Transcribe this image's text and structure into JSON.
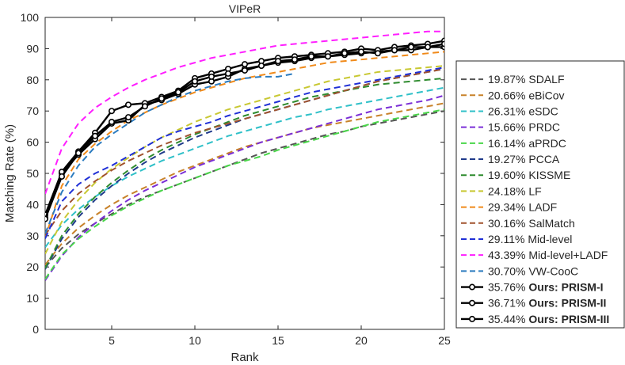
{
  "chart_data": {
    "type": "line",
    "title": "VIPeR",
    "xlabel": "Rank",
    "ylabel": "Matching Rate (%)",
    "xlim": [
      1,
      25
    ],
    "ylim": [
      0,
      100
    ],
    "xticks": [
      5,
      10,
      15,
      20,
      25
    ],
    "yticks": [
      0,
      10,
      20,
      30,
      40,
      50,
      60,
      70,
      80,
      90,
      100
    ],
    "grid": false,
    "legend_position": "right-outside",
    "x": [
      1,
      2,
      3,
      4,
      5,
      6,
      7,
      8,
      9,
      10,
      11,
      12,
      13,
      14,
      15,
      16,
      17,
      18,
      19,
      20,
      21,
      22,
      23,
      24,
      25
    ],
    "series": [
      {
        "name": "SDALF",
        "legend_value": "19.87%",
        "legend_name": "SDALF",
        "bold": false,
        "color": "#555555",
        "style": "dashed",
        "values": [
          19.9,
          26.0,
          30.5,
          34.0,
          37.0,
          40.0,
          42.5,
          44.5,
          46.5,
          48.5,
          50.5,
          52.5,
          54.5,
          56.5,
          58.0,
          59.5,
          61.0,
          62.5,
          63.5,
          65.0,
          66.0,
          67.0,
          68.0,
          69.0,
          70.0
        ]
      },
      {
        "name": "eBiCov",
        "legend_value": "20.66%",
        "legend_name": "eBiCov",
        "bold": false,
        "color": "#c8822a",
        "style": "dashed",
        "values": [
          20.7,
          27.5,
          32.5,
          36.5,
          40.0,
          43.0,
          45.5,
          48.0,
          50.5,
          52.5,
          54.5,
          56.5,
          58.5,
          60.0,
          61.5,
          63.0,
          64.5,
          65.5,
          66.5,
          67.5,
          68.5,
          69.5,
          70.5,
          71.5,
          72.5
        ]
      },
      {
        "name": "eSDC",
        "legend_value": "26.31%",
        "legend_name": "eSDC",
        "bold": false,
        "color": "#2fc0c8",
        "style": "dashed",
        "values": [
          26.3,
          33.5,
          38.5,
          42.5,
          46.0,
          49.0,
          51.5,
          54.0,
          56.0,
          58.0,
          60.0,
          62.0,
          63.5,
          65.0,
          66.5,
          68.0,
          69.0,
          70.5,
          71.5,
          72.5,
          73.5,
          74.5,
          75.5,
          76.5,
          77.5
        ]
      },
      {
        "name": "PRDC",
        "legend_value": "15.66%",
        "legend_name": "PRDC",
        "bold": false,
        "color": "#7b2fd6",
        "style": "dashed",
        "values": [
          15.7,
          23.5,
          29.5,
          34.0,
          38.0,
          41.5,
          44.5,
          47.0,
          49.5,
          52.0,
          54.0,
          56.0,
          58.0,
          60.0,
          61.5,
          63.0,
          64.5,
          66.0,
          67.5,
          69.0,
          70.5,
          71.5,
          72.5,
          73.5,
          75.0
        ]
      },
      {
        "name": "aPRDC",
        "legend_value": "16.14%",
        "legend_name": "aPRDC",
        "bold": false,
        "color": "#49d649",
        "style": "dashed",
        "values": [
          16.1,
          24.0,
          29.0,
          33.0,
          36.5,
          39.5,
          42.0,
          44.5,
          46.5,
          48.5,
          50.5,
          52.5,
          54.0,
          55.5,
          57.5,
          59.0,
          60.5,
          62.0,
          63.5,
          65.0,
          66.5,
          67.5,
          68.5,
          69.5,
          70.5
        ]
      },
      {
        "name": "PCCA",
        "legend_value": "19.27%",
        "legend_name": "PCCA",
        "bold": false,
        "color": "#1f3a8a",
        "style": "dashed",
        "values": [
          19.3,
          29.0,
          36.0,
          41.5,
          46.0,
          50.0,
          53.5,
          56.5,
          59.0,
          61.5,
          63.5,
          65.5,
          67.5,
          69.0,
          70.5,
          72.0,
          73.5,
          75.0,
          76.5,
          78.0,
          79.5,
          80.5,
          81.5,
          82.5,
          83.5
        ]
      },
      {
        "name": "KISSME",
        "legend_value": "19.60%",
        "legend_name": "KISSME",
        "bold": false,
        "color": "#2e8b2e",
        "style": "dashed",
        "values": [
          19.6,
          30.0,
          37.0,
          42.5,
          47.0,
          51.0,
          54.5,
          57.5,
          60.0,
          62.5,
          64.5,
          66.5,
          68.5,
          70.0,
          71.5,
          73.0,
          74.5,
          75.5,
          76.5,
          77.5,
          78.5,
          79.0,
          79.5,
          80.0,
          80.5
        ]
      },
      {
        "name": "LF",
        "legend_value": "24.18%",
        "legend_name": "LF",
        "bold": false,
        "color": "#c8c832",
        "style": "dashed",
        "values": [
          24.2,
          34.5,
          41.5,
          47.0,
          51.5,
          55.0,
          58.5,
          61.5,
          64.0,
          66.5,
          68.5,
          70.5,
          72.0,
          73.5,
          75.0,
          76.5,
          78.0,
          79.5,
          80.5,
          81.5,
          82.5,
          83.0,
          83.5,
          84.0,
          84.5
        ]
      },
      {
        "name": "LADF",
        "legend_value": "29.34%",
        "legend_name": "LADF",
        "bold": false,
        "color": "#f08a1a",
        "style": "dashed",
        "values": [
          29.3,
          46.0,
          54.5,
          59.5,
          63.5,
          67.0,
          69.5,
          72.0,
          74.0,
          76.0,
          77.5,
          79.0,
          80.5,
          81.5,
          82.5,
          83.5,
          84.5,
          85.5,
          86.0,
          86.5,
          87.0,
          87.5,
          88.0,
          88.5,
          89.0
        ]
      },
      {
        "name": "SalMatch",
        "legend_value": "30.16%",
        "legend_name": "SalMatch",
        "bold": false,
        "color": "#a0522d",
        "style": "dashed",
        "values": [
          30.2,
          38.0,
          43.5,
          47.5,
          51.0,
          54.0,
          56.5,
          59.0,
          61.0,
          63.0,
          64.5,
          66.0,
          67.5,
          69.0,
          70.5,
          72.0,
          73.5,
          75.0,
          76.5,
          78.0,
          79.5,
          80.5,
          81.5,
          82.5,
          83.5
        ]
      },
      {
        "name": "Mid-level",
        "legend_value": "29.11%",
        "legend_name": "Mid-level",
        "bold": false,
        "color": "#1f2fd6",
        "style": "dashed",
        "values": [
          29.1,
          41.0,
          46.5,
          50.0,
          52.5,
          55.5,
          58.5,
          61.5,
          63.5,
          65.0,
          66.5,
          68.5,
          70.0,
          71.5,
          73.0,
          74.5,
          76.0,
          77.0,
          78.0,
          79.0,
          80.0,
          81.0,
          82.0,
          83.0,
          84.0
        ]
      },
      {
        "name": "Mid-level+LADF",
        "legend_value": "43.39%",
        "legend_name": "Mid-level+LADF",
        "bold": false,
        "color": "#ff1eff",
        "style": "dashed",
        "values": [
          43.4,
          58.0,
          66.0,
          71.0,
          74.5,
          77.5,
          80.0,
          82.0,
          84.0,
          85.5,
          87.0,
          88.0,
          89.0,
          90.0,
          91.0,
          91.5,
          92.0,
          92.5,
          93.0,
          93.5,
          94.0,
          94.5,
          95.0,
          95.5,
          95.5
        ]
      },
      {
        "name": "VW-CooC",
        "legend_value": "30.70%",
        "legend_name": "VW-CooC",
        "bold": false,
        "color": "#2b7bbf",
        "style": "dashed",
        "values": [
          30.7,
          44.0,
          52.5,
          58.5,
          62.5,
          66.0,
          69.5,
          72.0,
          74.5,
          76.5,
          78.0,
          79.5,
          80.5,
          81.0,
          81.0,
          82.0,
          null,
          null,
          null,
          null,
          null,
          null,
          null,
          null,
          null
        ]
      },
      {
        "name": "Ours: PRISM-I",
        "legend_value": "35.76%",
        "legend_name": "Ours: PRISM-I",
        "bold": true,
        "color": "#000000",
        "style": "solid",
        "values": [
          35.8,
          50.0,
          56.0,
          61.0,
          66.0,
          67.0,
          72.0,
          73.5,
          75.5,
          78.5,
          79.5,
          81.0,
          83.5,
          84.5,
          85.5,
          86.0,
          87.0,
          87.5,
          88.0,
          88.5,
          89.0,
          89.5,
          89.5,
          90.5,
          90.5
        ]
      },
      {
        "name": "Ours: PRISM-II",
        "legend_value": "36.71%",
        "legend_name": "Ours: PRISM-II",
        "bold": true,
        "color": "#000000",
        "style": "solid",
        "values": [
          36.7,
          50.5,
          57.0,
          63.0,
          70.0,
          72.0,
          72.5,
          74.5,
          76.5,
          80.5,
          82.0,
          83.5,
          85.0,
          86.0,
          87.0,
          87.5,
          88.0,
          88.5,
          89.0,
          90.0,
          89.5,
          90.5,
          91.0,
          91.5,
          92.5
        ]
      },
      {
        "name": "Ours: PRISM-III",
        "legend_value": "35.44%",
        "legend_name": "Ours: PRISM-III",
        "bold": true,
        "color": "#000000",
        "style": "solid",
        "values": [
          35.4,
          49.0,
          56.5,
          62.0,
          66.5,
          68.0,
          71.5,
          74.0,
          76.0,
          79.5,
          81.0,
          82.0,
          83.0,
          84.5,
          86.0,
          86.5,
          87.5,
          87.5,
          88.5,
          89.0,
          88.5,
          89.5,
          90.5,
          90.5,
          91.5
        ]
      }
    ]
  }
}
